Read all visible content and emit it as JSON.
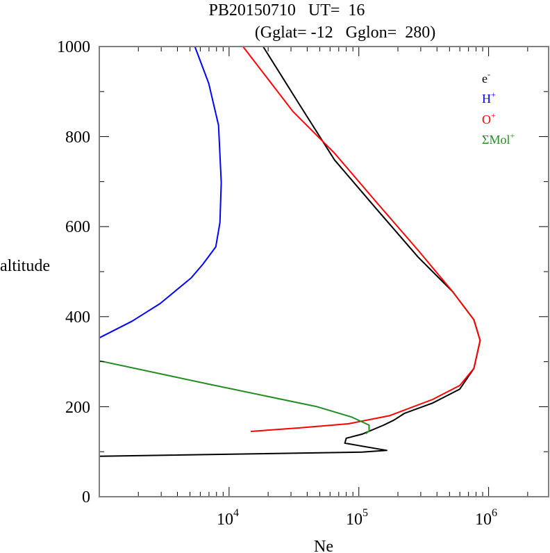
{
  "chart_data": {
    "type": "line",
    "title": "PB20150710   UT=  16",
    "subtitle": "(Gglat= -12   Gglon=  280)",
    "xlabel": "Ne",
    "ylabel": "altitude",
    "xscale": "log",
    "xlim": [
      1000,
      2900000
    ],
    "ylim": [
      0,
      1000
    ],
    "xticks": [
      {
        "value": 10000,
        "base": "10",
        "exp": "4"
      },
      {
        "value": 100000,
        "base": "10",
        "exp": "5"
      },
      {
        "value": 1000000,
        "base": "10",
        "exp": "6"
      }
    ],
    "yticks": [
      0,
      200,
      400,
      600,
      800,
      1000
    ],
    "ytick_labels": [
      "0",
      "200",
      "400",
      "600",
      "800",
      "1000"
    ],
    "legend_position": "top-right",
    "series": [
      {
        "name": "e-",
        "label_base": "e",
        "label_sup": "-",
        "color": "#000000",
        "points": [
          [
            18300,
            1000
          ],
          [
            34900,
            871
          ],
          [
            65000,
            748
          ],
          [
            136000,
            640
          ],
          [
            287000,
            532
          ],
          [
            530000,
            455
          ],
          [
            770000,
            393
          ],
          [
            860000,
            347
          ],
          [
            770000,
            285
          ],
          [
            600000,
            239
          ],
          [
            370000,
            208
          ],
          [
            224000,
            185
          ],
          [
            186000,
            170
          ],
          [
            155000,
            159
          ],
          [
            106000,
            139
          ],
          [
            80000,
            130
          ],
          [
            78000,
            119
          ],
          [
            164000,
            103
          ],
          [
            106000,
            99
          ],
          [
            1000,
            90
          ]
        ]
      },
      {
        "name": "H+",
        "label_base": "H",
        "label_sup": "+",
        "color": "#0000ff",
        "points": [
          [
            5450,
            1000
          ],
          [
            6970,
            918
          ],
          [
            8300,
            825
          ],
          [
            8700,
            698
          ],
          [
            8500,
            609
          ],
          [
            7900,
            555
          ],
          [
            6300,
            517
          ],
          [
            5100,
            486
          ],
          [
            2940,
            429
          ],
          [
            1790,
            390
          ],
          [
            1000,
            353
          ]
        ]
      },
      {
        "name": "O+",
        "label_base": "O",
        "label_sup": "+",
        "color": "#ff0000",
        "points": [
          [
            12800,
            1000
          ],
          [
            31000,
            856
          ],
          [
            65000,
            763
          ],
          [
            136000,
            655
          ],
          [
            287000,
            547
          ],
          [
            530000,
            455
          ],
          [
            770000,
            393
          ],
          [
            860000,
            347
          ],
          [
            770000,
            285
          ],
          [
            600000,
            247
          ],
          [
            370000,
            216
          ],
          [
            172000,
            180
          ],
          [
            83000,
            162
          ],
          [
            35000,
            153
          ],
          [
            14700,
            145
          ]
        ]
      },
      {
        "name": "ΣMol+",
        "label_base": "ΣMol",
        "label_sup": "+",
        "color": "#228b22",
        "points": [
          [
            1000,
            302
          ],
          [
            7000,
            250
          ],
          [
            47600,
            200
          ],
          [
            88000,
            177
          ],
          [
            120000,
            159
          ],
          [
            120000,
            146
          ],
          [
            113000,
            140
          ]
        ]
      }
    ]
  }
}
